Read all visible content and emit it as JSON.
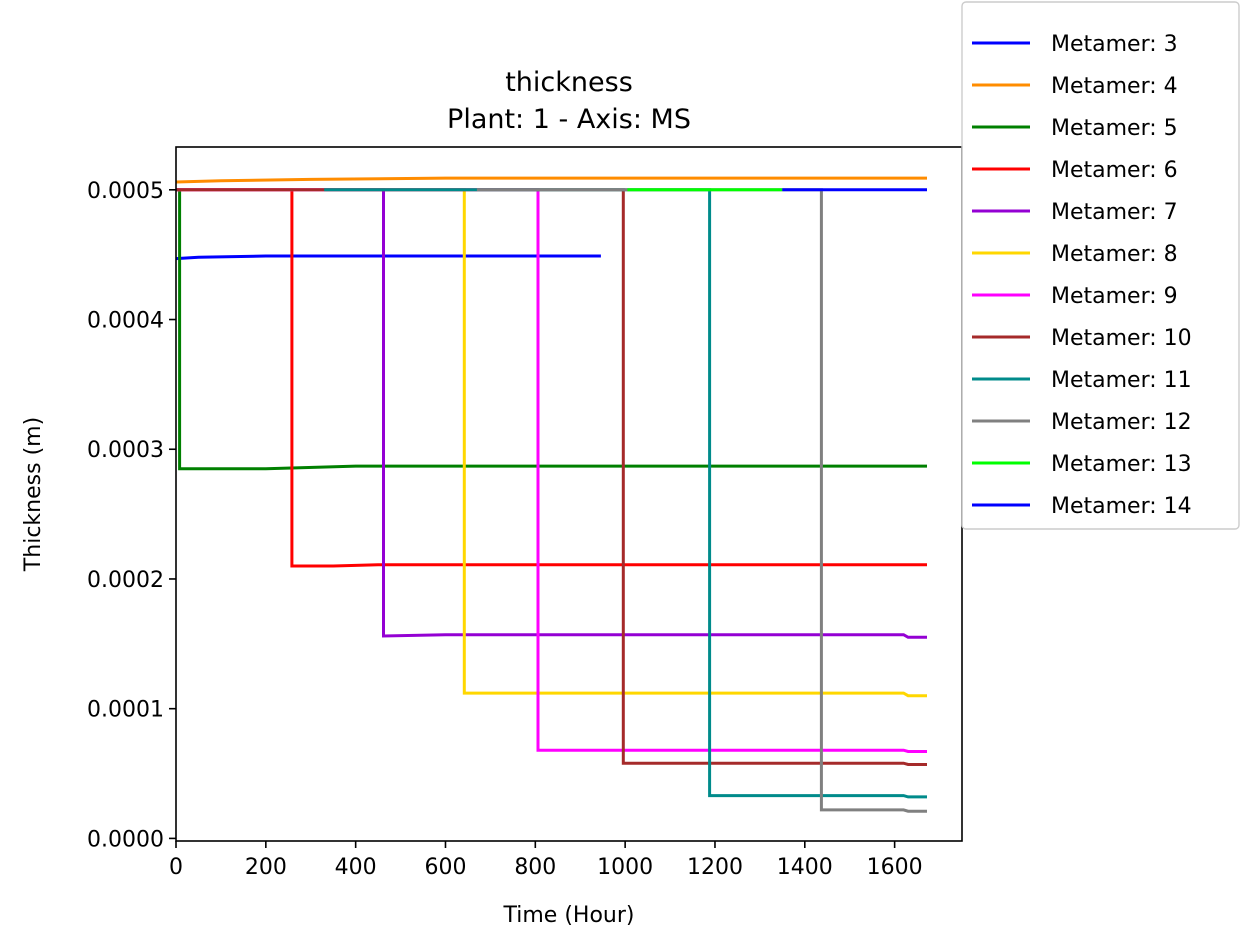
{
  "chart_data": {
    "type": "line",
    "title": "thickness",
    "subtitle": "Plant: 1 - Axis: MS",
    "xlabel": "Time (Hour)",
    "ylabel": "Thickness (m)",
    "xlim": [
      0,
      1750
    ],
    "ylim": [
      -2e-06,
      0.000533
    ],
    "xticks": [
      0,
      200,
      400,
      600,
      800,
      1000,
      1200,
      1400,
      1600
    ],
    "xtick_labels": [
      "0",
      "200",
      "400",
      "600",
      "800",
      "1000",
      "1200",
      "1400",
      "1600"
    ],
    "yticks": [
      0,
      0.0001,
      0.0002,
      0.0003,
      0.0004,
      0.0005
    ],
    "ytick_labels": [
      "0.0000",
      "0.0001",
      "0.0002",
      "0.0003",
      "0.0004",
      "0.0005"
    ],
    "grid": false,
    "legend_position": "outside-top-right",
    "series": [
      {
        "name": "Metamer: 3",
        "color": "#0000ff",
        "x": [
          0,
          50,
          200,
          400,
          946
        ],
        "y": [
          0.000447,
          0.000448,
          0.000449,
          0.000449,
          0.000449
        ]
      },
      {
        "name": "Metamer: 4",
        "color": "#ff8c00",
        "x": [
          0,
          100,
          300,
          600,
          1000,
          1672
        ],
        "y": [
          0.000506,
          0.000507,
          0.000508,
          0.000509,
          0.000509,
          0.000509
        ]
      },
      {
        "name": "Metamer: 5",
        "color": "#008000",
        "x": [
          0,
          8,
          8,
          200,
          400,
          1672
        ],
        "y": [
          0.0005,
          0.0005,
          0.000285,
          0.000285,
          0.000287,
          0.000287
        ]
      },
      {
        "name": "Metamer: 6",
        "color": "#ff0000",
        "x": [
          0,
          258,
          258,
          350,
          450,
          1672
        ],
        "y": [
          0.0005,
          0.0005,
          0.00021,
          0.00021,
          0.000211,
          0.000211
        ]
      },
      {
        "name": "Metamer: 7",
        "color": "#9400d3",
        "x": [
          0,
          462,
          462,
          600,
          1620,
          1630,
          1672
        ],
        "y": [
          0.0005,
          0.0005,
          0.000156,
          0.000157,
          0.000157,
          0.000155,
          0.000155
        ]
      },
      {
        "name": "Metamer: 8",
        "color": "#ffd700",
        "x": [
          0,
          642,
          642,
          800,
          1620,
          1630,
          1672
        ],
        "y": [
          0.0005,
          0.0005,
          0.000112,
          0.000112,
          0.000112,
          0.00011,
          0.00011
        ]
      },
      {
        "name": "Metamer: 9",
        "color": "#ff00ff",
        "x": [
          0,
          806,
          806,
          1620,
          1630,
          1672
        ],
        "y": [
          0.0005,
          0.0005,
          6.8e-05,
          6.8e-05,
          6.7e-05,
          6.7e-05
        ]
      },
      {
        "name": "Metamer: 10",
        "color": "#a52a2a",
        "x": [
          0,
          996,
          996,
          1620,
          1630,
          1672
        ],
        "y": [
          0.0005,
          0.0005,
          5.8e-05,
          5.8e-05,
          5.7e-05,
          5.7e-05
        ]
      },
      {
        "name": "Metamer: 11",
        "color": "#008b8b",
        "x": [
          330,
          1188,
          1188,
          1620,
          1630,
          1672
        ],
        "y": [
          0.0005,
          0.0005,
          3.3e-05,
          3.3e-05,
          3.2e-05,
          3.2e-05
        ]
      },
      {
        "name": "Metamer: 12",
        "color": "#808080",
        "x": [
          670,
          1437,
          1437,
          1620,
          1630,
          1672
        ],
        "y": [
          0.0005,
          0.0005,
          2.2e-05,
          2.2e-05,
          2.1e-05,
          2.1e-05
        ]
      },
      {
        "name": "Metamer: 13",
        "color": "#00ff00",
        "x": [
          1005,
          1350
        ],
        "y": [
          0.0005,
          0.0005
        ]
      },
      {
        "name": "Metamer: 14",
        "color": "#0000ff",
        "x": [
          1350,
          1672
        ],
        "y": [
          0.0005,
          0.0005
        ]
      }
    ]
  }
}
